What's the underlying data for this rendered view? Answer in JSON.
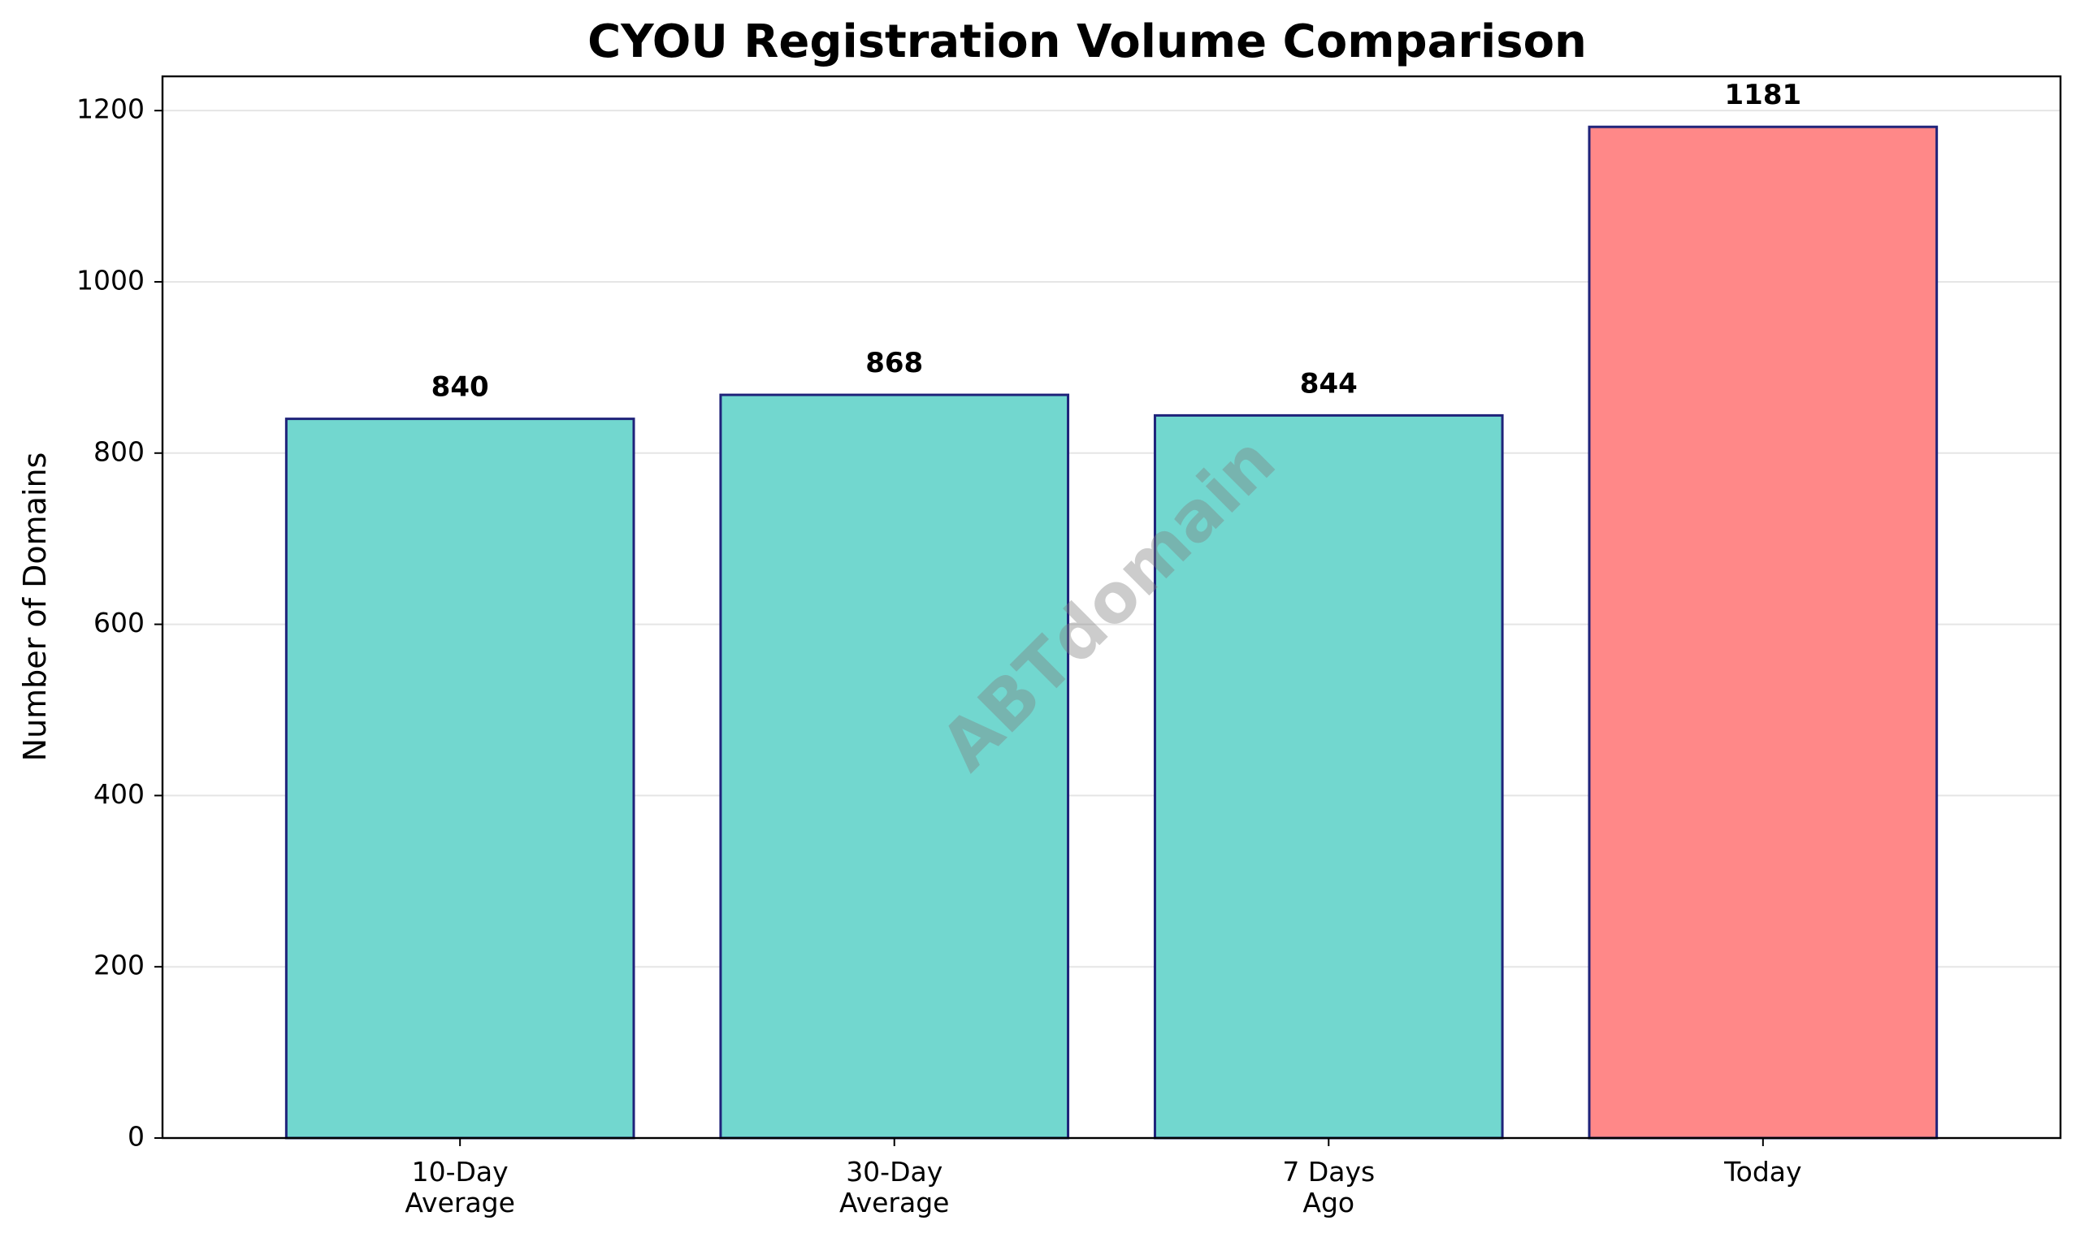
{
  "chart_data": {
    "type": "bar",
    "title": "CYOU Registration Volume Comparison",
    "xlabel": "",
    "ylabel": "Number of Domains",
    "categories": [
      [
        "10-Day",
        "Average"
      ],
      [
        "30-Day",
        "Average"
      ],
      [
        "7 Days",
        "Ago"
      ],
      [
        "Today"
      ]
    ],
    "values": [
      840,
      868,
      844,
      1181
    ],
    "value_labels": [
      "840",
      "868",
      "844",
      "1181"
    ],
    "bar_colors": [
      "#72d7cf",
      "#72d7cf",
      "#72d7cf",
      "#ff8888"
    ],
    "bar_edge_color": "#1f237a",
    "ylim": [
      0,
      1240
    ],
    "yticks": [
      0,
      200,
      400,
      600,
      800,
      1000,
      1200
    ],
    "grid": "y",
    "grid_color": "#e5e5e5",
    "watermark": "ABTdomain"
  }
}
